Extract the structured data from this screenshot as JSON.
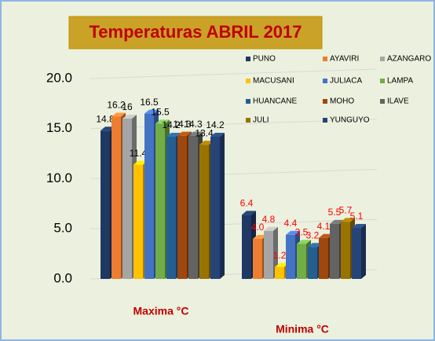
{
  "chart_data": {
    "type": "bar3d",
    "title": "Temperaturas ABRIL 2017",
    "categories": [
      "Maxima °C",
      "Minima °C"
    ],
    "label_colors": [
      "#000000",
      "#ff0000"
    ],
    "ylim": [
      0,
      20
    ],
    "yticks": [
      {
        "value": 0,
        "label": "0.0"
      },
      {
        "value": 5,
        "label": "5.0"
      },
      {
        "value": 10,
        "label": "10.0"
      },
      {
        "value": 15,
        "label": "15.0"
      },
      {
        "value": 20,
        "label": "20.0"
      }
    ],
    "grid": true,
    "legend": "top-right",
    "series": [
      {
        "name": "PUNO",
        "color": "#1f3864",
        "values": [
          14.8,
          6.4
        ]
      },
      {
        "name": "AYAVIRI",
        "color": "#ed7d31",
        "values": [
          16.2,
          4
        ],
        "value_labels": [
          "16.2",
          "4.0"
        ]
      },
      {
        "name": "AZANGARO",
        "color": "#a5a5a5",
        "values": [
          16,
          4.8
        ]
      },
      {
        "name": "MACUSANI",
        "color": "#ffc000",
        "values": [
          11.4,
          1.2
        ]
      },
      {
        "name": "JULIACA",
        "color": "#4472c4",
        "values": [
          16.5,
          4.4
        ]
      },
      {
        "name": "LAMPA",
        "color": "#70ad47",
        "values": [
          15.5,
          3.5
        ]
      },
      {
        "name": "HUANCANE",
        "color": "#255e91",
        "values": [
          14.2,
          3.2
        ]
      },
      {
        "name": "MOHO",
        "color": "#9e480e",
        "values": [
          14.3,
          4.1
        ]
      },
      {
        "name": "ILAVE",
        "color": "#636363",
        "values": [
          14.3,
          5.5
        ]
      },
      {
        "name": "JULI",
        "color": "#997300",
        "values": [
          13.4,
          5.7
        ]
      },
      {
        "name": "YUNGUYO",
        "color": "#264478",
        "values": [
          14.2,
          5.1
        ]
      }
    ]
  }
}
